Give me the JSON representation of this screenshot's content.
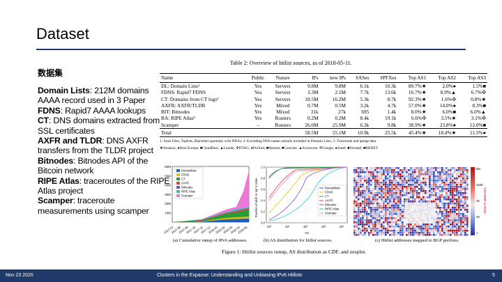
{
  "slide": {
    "title": "Dataset"
  },
  "left": {
    "chinese_heading": "数据集",
    "entries": [
      {
        "term": "Domain Lists",
        "text": ": 212M domains AAAA record used in 3 Paper"
      },
      {
        "term": "FDNS",
        "text": ": Rapid7 AAAA lookups"
      },
      {
        "term": "CT",
        "text": ": DNS domains extracted from SSL certificates"
      },
      {
        "term": "AXFR and TLDR",
        "text": ": DNS AXFR transfers from the TLDR project"
      },
      {
        "term": "Bitnodes",
        "text": ": Bitnodes API of the Bitcoin network"
      },
      {
        "term": "RIPE Atlas",
        "text": ": traceroutes of the RIPE Atlas project"
      },
      {
        "term": "Scamper",
        "text": ": traceroute measurements using scamper"
      }
    ]
  },
  "table": {
    "caption": "Table 2: Overview of hitlist sources, as of 2018-05-11.",
    "headers": [
      "Name",
      "Public",
      "Nature",
      "IPs",
      "new IPs",
      "#ASes",
      "#PFXes",
      "Top AS1",
      "Top AS2",
      "Top AS3"
    ],
    "rows": [
      [
        "DL: Domain Lists¹",
        "Yes",
        "Servers",
        "9.8M",
        "9.8M",
        "6.1k",
        "10.3k",
        "89.7%★",
        "2.0%●",
        "1.5%■"
      ],
      [
        "FDNS: Rapid7 FDNS",
        "Yes",
        "Servers",
        "3.3M",
        "2.5M",
        "7.7k",
        "13.6k",
        "16.7%★",
        "8.9%▲",
        "6.7%✣"
      ],
      [
        "CT: Domains from CT logs²",
        "Yes",
        "Servers",
        "18.5M",
        "16.2M",
        "5.3k",
        "8.7k",
        "92.3%★",
        "1.6%✣",
        "0.8%★"
      ],
      [
        "AXFR: AXFR/TLDR",
        "Yes",
        "Mixed",
        "0.7M",
        "0.5M",
        "3.2k",
        "4.7k",
        "57.0%★",
        "14.0%●",
        "8.3%■"
      ],
      [
        "BIT: Bitnodes",
        "Yes",
        "Mixed",
        "31k",
        "27k",
        "695",
        "1.4k",
        "8.0%★",
        "6.0%■",
        "6.0%▲"
      ],
      [
        "RA: RIPE Atlas³",
        "Yes",
        "Routers",
        "0.2M",
        "0.2M",
        "8.4k",
        "19.1k",
        "6.6%✣",
        "3.5%★",
        "3.1%✣"
      ],
      [
        "Scamper",
        "–",
        "Routers",
        "26.0M",
        "25.9M",
        "6.3k",
        "9.8k",
        "38.9%★",
        "23.8%●",
        "12.0%■"
      ]
    ],
    "total": [
      "Total",
      "",
      "",
      "58.5M",
      "55.1M",
      "10.9k",
      "25.5k",
      "45.4%★",
      "18.4%★",
      "11.5%●"
    ],
    "footnote1": "1: Zone Files, Toplists, Blacklists (partially with NDA); 2: Excluding DNS names already included in Domain Lists; 3: Traceroute and ipmap data",
    "footnote2": "★Amazon, ●Host Europe, ■Cloudflare, ▲Linode, ✣DTAG, ●ProXad, ■Hetzner, ■Comcast, ▲Swisscom, ✣Google, ●Antel, ■Versatel, ■BHNET"
  },
  "figure_a": {
    "y_ticks": [
      "60M",
      "50M",
      "40M",
      "30M",
      "20M",
      "10M"
    ],
    "x_ticks": [
      "2017-07",
      "2017-08",
      "2017-09",
      "2017-10",
      "2017-11",
      "2017-12",
      "2018-01",
      "2018-02",
      "2018-03",
      "2018-04",
      "2018-05"
    ],
    "legend": [
      "Domainlists",
      "FDNS",
      "CT",
      "AXFR",
      "Bitnodes",
      "RIPE Atlas",
      "Scamper"
    ],
    "caption": "(a) Cumulative runup of IPv6 addresses."
  },
  "figure_b": {
    "y_label": "Fraction of addr. in top X ASes",
    "x_label": "AS",
    "x_ticks": [
      "10⁰",
      "10¹",
      "10²",
      "10³",
      "10⁴"
    ],
    "y_ticks": [
      "1.0",
      "0.8",
      "0.6",
      "0.4",
      "0.2",
      "0.0"
    ],
    "legend": [
      "Domainlists",
      "FDNS",
      "CT",
      "AXFR",
      "Bitnodes",
      "RIPE Atlas",
      "Scamper"
    ],
    "caption": "(b) AS distribution for hitlist sources."
  },
  "figure_c": {
    "colorbar_label": "Hitlist IP addresses",
    "colorbar_ticks": [
      "5M",
      "153K",
      "2K",
      "49",
      "1"
    ],
    "caption": "(c) Hitlist addresses mapped to BGP prefixes."
  },
  "figure_caption": "Figure 1: Hitlist sources runup, AS distribution as CDF, and zesplot.",
  "footer": {
    "date": "Nov 23 2020",
    "title": "Clusters in the Expanse: Understanding and Unbiasing IPv6 Hitlists",
    "page": "5"
  },
  "colors": {
    "series": [
      "#1f5fbf",
      "#e8c000",
      "#2a9d3a",
      "#e04040",
      "#7a4fbf",
      "#26c6c6",
      "#e87ad6"
    ],
    "footer_bg": "#1f3a68"
  }
}
